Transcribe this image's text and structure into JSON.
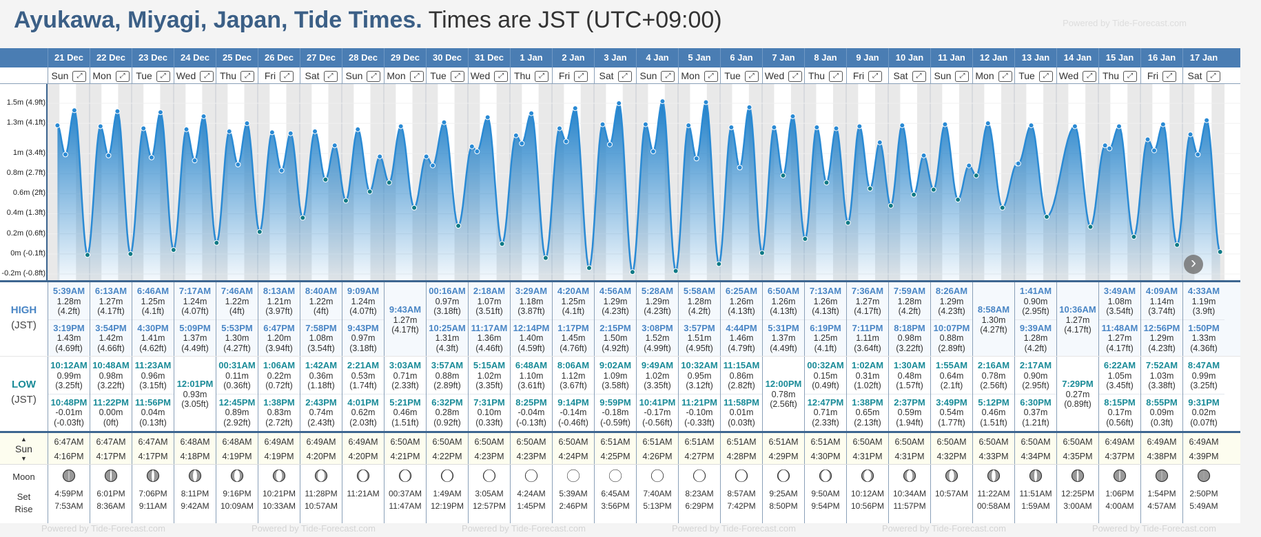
{
  "title": {
    "location": "Ayukawa, Miyagi, Japan, Tide Times.",
    "timezone": "Times are JST (UTC+09:00)"
  },
  "powered_by": "Powered by Tide-Forecast.com",
  "labels": {
    "high": "HIGH",
    "low": "LOW",
    "tz": "(JST)",
    "sun": "Sun",
    "moon": "Moon",
    "set": "Set",
    "rise": "Rise"
  },
  "colors": {
    "header": "#4a7db3",
    "high": "#4a86c5",
    "low": "#1a8b98",
    "tide": "#1f7fc8"
  },
  "y_axis": [
    "1.5m (4.9ft)",
    "1.3m (4.1ft)",
    "1m (3.4ft)",
    "0.8m (2.7ft)",
    "0.6m (2ft)",
    "0.4m (1.3ft)",
    "0.2m (0.6ft)",
    "0m (-0.1ft)",
    "-0.2m (-0.8ft)"
  ],
  "y_axis_values": [
    1.5,
    1.3,
    1.0,
    0.8,
    0.6,
    0.4,
    0.2,
    0,
    -0.2
  ],
  "days": [
    {
      "date": "21 Dec",
      "dow": "Sun",
      "highs": [
        [
          "5:39AM",
          "1.28m",
          "(4.2ft)"
        ],
        [
          "3:19PM",
          "1.43m",
          "(4.69ft)"
        ]
      ],
      "lows": [
        [
          "10:12AM",
          "0.99m",
          "(3.25ft)"
        ],
        [
          "10:48PM",
          "-0.01m",
          "(-0.03ft)"
        ]
      ],
      "sun": [
        "6:47AM",
        "4:16PM"
      ],
      "moon": [
        "4:59PM",
        "7:53AM"
      ],
      "lit": 0.05
    },
    {
      "date": "22 Dec",
      "dow": "Mon",
      "highs": [
        [
          "6:13AM",
          "1.27m",
          "(4.17ft)"
        ],
        [
          "3:54PM",
          "1.42m",
          "(4.66ft)"
        ]
      ],
      "lows": [
        [
          "10:48AM",
          "0.98m",
          "(3.22ft)"
        ],
        [
          "11:22PM",
          "0.00m",
          "(0ft)"
        ]
      ],
      "sun": [
        "6:47AM",
        "4:17PM"
      ],
      "moon": [
        "6:01PM",
        "8:36AM"
      ],
      "lit": 0.12
    },
    {
      "date": "23 Dec",
      "dow": "Tue",
      "highs": [
        [
          "6:46AM",
          "1.25m",
          "(4.1ft)"
        ],
        [
          "4:30PM",
          "1.41m",
          "(4.62ft)"
        ]
      ],
      "lows": [
        [
          "11:23AM",
          "0.96m",
          "(3.15ft)"
        ],
        [
          "11:56PM",
          "0.04m",
          "(0.13ft)"
        ]
      ],
      "sun": [
        "6:47AM",
        "4:17PM"
      ],
      "moon": [
        "7:06PM",
        "9:11AM"
      ],
      "lit": 0.22
    },
    {
      "date": "24 Dec",
      "dow": "Wed",
      "highs": [
        [
          "7:17AM",
          "1.24m",
          "(4.07ft)"
        ],
        [
          "5:09PM",
          "1.37m",
          "(4.49ft)"
        ]
      ],
      "lows": [
        [
          "12:01PM",
          "0.93m",
          "(3.05ft)"
        ]
      ],
      "sun": [
        "6:48AM",
        "4:18PM"
      ],
      "moon": [
        "8:11PM",
        "9:42AM"
      ],
      "lit": 0.35
    },
    {
      "date": "25 Dec",
      "dow": "Thu",
      "highs": [
        [
          "7:46AM",
          "1.22m",
          "(4ft)"
        ],
        [
          "5:53PM",
          "1.30m",
          "(4.27ft)"
        ]
      ],
      "lows": [
        [
          "00:31AM",
          "0.11m",
          "(0.36ft)"
        ],
        [
          "12:45PM",
          "0.89m",
          "(2.92ft)"
        ]
      ],
      "sun": [
        "6:48AM",
        "4:19PM"
      ],
      "moon": [
        "9:16PM",
        "10:09AM"
      ],
      "lit": 0.48
    },
    {
      "date": "26 Dec",
      "dow": "Fri",
      "highs": [
        [
          "8:13AM",
          "1.21m",
          "(3.97ft)"
        ],
        [
          "6:47PM",
          "1.20m",
          "(3.94ft)"
        ]
      ],
      "lows": [
        [
          "1:06AM",
          "0.22m",
          "(0.72ft)"
        ],
        [
          "1:38PM",
          "0.83m",
          "(2.72ft)"
        ]
      ],
      "sun": [
        "6:49AM",
        "4:19PM"
      ],
      "moon": [
        "10:21PM",
        "10:33AM"
      ],
      "lit": 0.52
    },
    {
      "date": "27 Dec",
      "dow": "Sat",
      "highs": [
        [
          "8:40AM",
          "1.22m",
          "(4ft)"
        ],
        [
          "7:58PM",
          "1.08m",
          "(3.54ft)"
        ]
      ],
      "lows": [
        [
          "1:42AM",
          "0.36m",
          "(1.18ft)"
        ],
        [
          "2:43PM",
          "0.74m",
          "(2.43ft)"
        ]
      ],
      "sun": [
        "6:49AM",
        "4:20PM"
      ],
      "moon": [
        "11:28PM",
        "10:57AM"
      ],
      "lit": 0.6
    },
    {
      "date": "28 Dec",
      "dow": "Sun",
      "highs": [
        [
          "9:09AM",
          "1.24m",
          "(4.07ft)"
        ],
        [
          "9:43PM",
          "0.97m",
          "(3.18ft)"
        ]
      ],
      "lows": [
        [
          "2:21AM",
          "0.53m",
          "(1.74ft)"
        ],
        [
          "4:01PM",
          "0.62m",
          "(2.03ft)"
        ]
      ],
      "sun": [
        "6:49AM",
        "4:20PM"
      ],
      "moon": [
        "",
        "11:21AM"
      ],
      "lit": 0.7
    },
    {
      "date": "29 Dec",
      "dow": "Mon",
      "highs": [
        [
          "9:43AM",
          "1.27m",
          "(4.17ft)"
        ]
      ],
      "lows": [
        [
          "3:03AM",
          "0.71m",
          "(2.33ft)"
        ],
        [
          "5:21PM",
          "0.46m",
          "(1.51ft)"
        ]
      ],
      "sun": [
        "6:50AM",
        "4:21PM"
      ],
      "moon": [
        "00:37AM",
        "11:47AM"
      ],
      "lit": 0.78
    },
    {
      "date": "30 Dec",
      "dow": "Tue",
      "highs": [
        [
          "00:16AM",
          "0.97m",
          "(3.18ft)"
        ],
        [
          "10:25AM",
          "1.31m",
          "(4.3ft)"
        ]
      ],
      "lows": [
        [
          "3:57AM",
          "0.88m",
          "(2.89ft)"
        ],
        [
          "6:32PM",
          "0.28m",
          "(0.92ft)"
        ]
      ],
      "sun": [
        "6:50AM",
        "4:22PM"
      ],
      "moon": [
        "1:49AM",
        "12:19PM"
      ],
      "lit": 0.85
    },
    {
      "date": "31 Dec",
      "dow": "Wed",
      "highs": [
        [
          "2:18AM",
          "1.07m",
          "(3.51ft)"
        ],
        [
          "11:17AM",
          "1.36m",
          "(4.46ft)"
        ]
      ],
      "lows": [
        [
          "5:15AM",
          "1.02m",
          "(3.35ft)"
        ],
        [
          "7:31PM",
          "0.10m",
          "(0.33ft)"
        ]
      ],
      "sun": [
        "6:50AM",
        "4:23PM"
      ],
      "moon": [
        "3:05AM",
        "12:57PM"
      ],
      "lit": 0.9
    },
    {
      "date": "1 Jan",
      "dow": "Thu",
      "highs": [
        [
          "3:29AM",
          "1.18m",
          "(3.87ft)"
        ],
        [
          "12:14PM",
          "1.40m",
          "(4.59ft)"
        ]
      ],
      "lows": [
        [
          "6:48AM",
          "1.10m",
          "(3.61ft)"
        ],
        [
          "8:25PM",
          "-0.04m",
          "(-0.13ft)"
        ]
      ],
      "sun": [
        "6:50AM",
        "4:23PM"
      ],
      "moon": [
        "4:24AM",
        "1:45PM"
      ],
      "lit": 0.95
    },
    {
      "date": "2 Jan",
      "dow": "Fri",
      "highs": [
        [
          "4:20AM",
          "1.25m",
          "(4.1ft)"
        ],
        [
          "1:17PM",
          "1.45m",
          "(4.76ft)"
        ]
      ],
      "lows": [
        [
          "8:06AM",
          "1.12m",
          "(3.67ft)"
        ],
        [
          "9:14PM",
          "-0.14m",
          "(-0.46ft)"
        ]
      ],
      "sun": [
        "6:50AM",
        "4:24PM"
      ],
      "moon": [
        "5:39AM",
        "2:46PM"
      ],
      "lit": 1
    },
    {
      "date": "3 Jan",
      "dow": "Sat",
      "highs": [
        [
          "4:56AM",
          "1.29m",
          "(4.23ft)"
        ],
        [
          "2:15PM",
          "1.50m",
          "(4.92ft)"
        ]
      ],
      "lows": [
        [
          "9:02AM",
          "1.09m",
          "(3.58ft)"
        ],
        [
          "9:59PM",
          "-0.18m",
          "(-0.59ft)"
        ]
      ],
      "sun": [
        "6:51AM",
        "4:25PM"
      ],
      "moon": [
        "6:45AM",
        "3:56PM"
      ],
      "lit": 1
    },
    {
      "date": "4 Jan",
      "dow": "Sun",
      "highs": [
        [
          "5:28AM",
          "1.29m",
          "(4.23ft)"
        ],
        [
          "3:08PM",
          "1.52m",
          "(4.99ft)"
        ]
      ],
      "lows": [
        [
          "9:49AM",
          "1.02m",
          "(3.35ft)"
        ],
        [
          "10:41PM",
          "-0.17m",
          "(-0.56ft)"
        ]
      ],
      "sun": [
        "6:51AM",
        "4:26PM"
      ],
      "moon": [
        "7:40AM",
        "5:13PM"
      ],
      "lit": 0.97
    },
    {
      "date": "5 Jan",
      "dow": "Mon",
      "highs": [
        [
          "5:58AM",
          "1.28m",
          "(4.2ft)"
        ],
        [
          "3:57PM",
          "1.51m",
          "(4.95ft)"
        ]
      ],
      "lows": [
        [
          "10:32AM",
          "0.95m",
          "(3.12ft)"
        ],
        [
          "11:21PM",
          "-0.10m",
          "(-0.33ft)"
        ]
      ],
      "sun": [
        "6:51AM",
        "4:27PM"
      ],
      "moon": [
        "8:23AM",
        "6:29PM"
      ],
      "lit": 0.93
    },
    {
      "date": "6 Jan",
      "dow": "Tue",
      "highs": [
        [
          "6:25AM",
          "1.26m",
          "(4.13ft)"
        ],
        [
          "4:44PM",
          "1.46m",
          "(4.79ft)"
        ]
      ],
      "lows": [
        [
          "11:15AM",
          "0.86m",
          "(2.82ft)"
        ],
        [
          "11:58PM",
          "0.01m",
          "(0.03ft)"
        ]
      ],
      "sun": [
        "6:51AM",
        "4:28PM"
      ],
      "moon": [
        "8:57AM",
        "7:42PM"
      ],
      "lit": 0.87
    },
    {
      "date": "7 Jan",
      "dow": "Wed",
      "highs": [
        [
          "6:50AM",
          "1.26m",
          "(4.13ft)"
        ],
        [
          "5:31PM",
          "1.37m",
          "(4.49ft)"
        ]
      ],
      "lows": [
        [
          "12:00PM",
          "0.78m",
          "(2.56ft)"
        ]
      ],
      "sun": [
        "6:51AM",
        "4:29PM"
      ],
      "moon": [
        "9:25AM",
        "8:50PM"
      ],
      "lit": 0.8
    },
    {
      "date": "8 Jan",
      "dow": "Thu",
      "highs": [
        [
          "7:13AM",
          "1.26m",
          "(4.13ft)"
        ],
        [
          "6:19PM",
          "1.25m",
          "(4.1ft)"
        ]
      ],
      "lows": [
        [
          "00:32AM",
          "0.15m",
          "(0.49ft)"
        ],
        [
          "12:47PM",
          "0.71m",
          "(2.33ft)"
        ]
      ],
      "sun": [
        "6:51AM",
        "4:30PM"
      ],
      "moon": [
        "9:50AM",
        "9:54PM"
      ],
      "lit": 0.7
    },
    {
      "date": "9 Jan",
      "dow": "Fri",
      "highs": [
        [
          "7:36AM",
          "1.27m",
          "(4.17ft)"
        ],
        [
          "7:11PM",
          "1.11m",
          "(3.64ft)"
        ]
      ],
      "lows": [
        [
          "1:02AM",
          "0.31m",
          "(1.02ft)"
        ],
        [
          "1:38PM",
          "0.65m",
          "(2.13ft)"
        ]
      ],
      "sun": [
        "6:50AM",
        "4:31PM"
      ],
      "moon": [
        "10:12AM",
        "10:56PM"
      ],
      "lit": 0.6
    },
    {
      "date": "10 Jan",
      "dow": "Sat",
      "highs": [
        [
          "7:59AM",
          "1.28m",
          "(4.2ft)"
        ],
        [
          "8:18PM",
          "0.98m",
          "(3.22ft)"
        ]
      ],
      "lows": [
        [
          "1:30AM",
          "0.48m",
          "(1.57ft)"
        ],
        [
          "2:37PM",
          "0.59m",
          "(1.94ft)"
        ]
      ],
      "sun": [
        "6:50AM",
        "4:31PM"
      ],
      "moon": [
        "10:34AM",
        "11:57PM"
      ],
      "lit": 0.5
    },
    {
      "date": "11 Jan",
      "dow": "Sun",
      "highs": [
        [
          "8:26AM",
          "1.29m",
          "(4.23ft)"
        ],
        [
          "10:07PM",
          "0.88m",
          "(2.89ft)"
        ]
      ],
      "lows": [
        [
          "1:55AM",
          "0.64m",
          "(2.1ft)"
        ],
        [
          "3:49PM",
          "0.54m",
          "(1.77ft)"
        ]
      ],
      "sun": [
        "6:50AM",
        "4:32PM"
      ],
      "moon": [
        "10:57AM",
        ""
      ],
      "lit": 0.43
    },
    {
      "date": "12 Jan",
      "dow": "Mon",
      "highs": [
        [
          "8:58AM",
          "1.30m",
          "(4.27ft)"
        ]
      ],
      "lows": [
        [
          "2:16AM",
          "0.78m",
          "(2.56ft)"
        ],
        [
          "5:12PM",
          "0.46m",
          "(1.51ft)"
        ]
      ],
      "sun": [
        "6:50AM",
        "4:33PM"
      ],
      "moon": [
        "11:22AM",
        "00:58AM"
      ],
      "lit": 0.33
    },
    {
      "date": "13 Jan",
      "dow": "Tue",
      "highs": [
        [
          "1:41AM",
          "0.90m",
          "(2.95ft)"
        ],
        [
          "9:39AM",
          "1.28m",
          "(4.2ft)"
        ]
      ],
      "lows": [
        [
          "2:17AM",
          "0.90m",
          "(2.95ft)"
        ],
        [
          "6:30PM",
          "0.37m",
          "(1.21ft)"
        ]
      ],
      "sun": [
        "6:50AM",
        "4:34PM"
      ],
      "moon": [
        "11:51AM",
        "1:59AM"
      ],
      "lit": 0.24
    },
    {
      "date": "14 Jan",
      "dow": "Wed",
      "highs": [
        [
          "10:36AM",
          "1.27m",
          "(4.17ft)"
        ]
      ],
      "lows": [
        [
          "7:29PM",
          "0.27m",
          "(0.89ft)"
        ]
      ],
      "sun": [
        "6:50AM",
        "4:35PM"
      ],
      "moon": [
        "12:25PM",
        "3:00AM"
      ],
      "lit": 0.15
    },
    {
      "date": "15 Jan",
      "dow": "Thu",
      "highs": [
        [
          "3:49AM",
          "1.08m",
          "(3.54ft)"
        ],
        [
          "11:48AM",
          "1.27m",
          "(4.17ft)"
        ]
      ],
      "lows": [
        [
          "6:22AM",
          "1.05m",
          "(3.45ft)"
        ],
        [
          "8:15PM",
          "0.17m",
          "(0.56ft)"
        ]
      ],
      "sun": [
        "6:49AM",
        "4:37PM"
      ],
      "moon": [
        "1:06PM",
        "4:00AM"
      ],
      "lit": 0.08
    },
    {
      "date": "16 Jan",
      "dow": "Fri",
      "highs": [
        [
          "4:09AM",
          "1.14m",
          "(3.74ft)"
        ],
        [
          "12:56PM",
          "1.29m",
          "(4.23ft)"
        ]
      ],
      "lows": [
        [
          "7:52AM",
          "1.03m",
          "(3.38ft)"
        ],
        [
          "8:55PM",
          "0.09m",
          "(0.3ft)"
        ]
      ],
      "sun": [
        "6:49AM",
        "4:38PM"
      ],
      "moon": [
        "1:54PM",
        "4:57AM"
      ],
      "lit": 0.03
    },
    {
      "date": "17 Jan",
      "dow": "Sat",
      "highs": [
        [
          "4:33AM",
          "1.19m",
          "(3.9ft)"
        ],
        [
          "1:50PM",
          "1.33m",
          "(4.36ft)"
        ]
      ],
      "lows": [
        [
          "8:47AM",
          "0.99m",
          "(3.25ft)"
        ],
        [
          "9:31PM",
          "0.02m",
          "(0.07ft)"
        ]
      ],
      "sun": [
        "6:49AM",
        "4:39PM"
      ],
      "moon": [
        "2:50PM",
        "5:49AM"
      ],
      "lit": 0.01
    }
  ]
}
